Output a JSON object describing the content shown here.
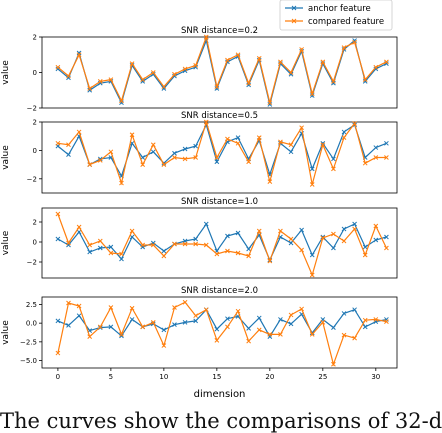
{
  "legend": {
    "items": [
      {
        "label": "anchor feature",
        "color": "#1f77b4",
        "marker": "x"
      },
      {
        "label": "compared feature",
        "color": "#ff7f0e",
        "marker": "x"
      }
    ]
  },
  "caption": "The curves show the comparisons of 32-d",
  "chart_data": [
    {
      "type": "line",
      "title": "SNR distance=0.2",
      "xlabel": "",
      "ylabel": "value",
      "xlim": [
        -1.5,
        32
      ],
      "ylim": [
        -2,
        2
      ],
      "yticks": [
        -2,
        0,
        2
      ],
      "ytick_labels": [
        "−2",
        "0",
        "2"
      ],
      "xticks": [],
      "xtick_labels": [],
      "x": [
        0,
        1,
        2,
        3,
        4,
        5,
        6,
        7,
        8,
        9,
        10,
        11,
        12,
        13,
        14,
        15,
        16,
        17,
        18,
        19,
        20,
        21,
        22,
        23,
        24,
        25,
        26,
        27,
        28,
        29,
        30,
        31
      ],
      "series": [
        {
          "name": "anchor feature",
          "values": [
            0.2,
            -0.3,
            1.1,
            -1.0,
            -0.6,
            -0.5,
            -1.7,
            0.4,
            -0.5,
            -0.1,
            -0.9,
            -0.2,
            0.1,
            0.3,
            1.8,
            -0.9,
            0.6,
            0.9,
            -0.7,
            0.7,
            -1.8,
            0.5,
            -0.1,
            1.2,
            -1.3,
            0.5,
            -0.6,
            1.3,
            1.8,
            -0.5,
            0.2,
            0.5
          ]
        },
        {
          "name": "compared feature",
          "values": [
            0.3,
            -0.2,
            1.0,
            -0.9,
            -0.5,
            -0.4,
            -1.6,
            0.5,
            -0.4,
            0.0,
            -0.8,
            -0.1,
            0.2,
            0.4,
            2.0,
            -0.8,
            0.7,
            1.0,
            -0.6,
            0.8,
            -1.7,
            0.6,
            0.0,
            1.3,
            -1.2,
            0.6,
            -0.5,
            1.4,
            1.7,
            -0.4,
            0.3,
            0.6
          ]
        }
      ]
    },
    {
      "type": "line",
      "title": "SNR distance=0.5",
      "xlabel": "",
      "ylabel": "value",
      "xlim": [
        -1.5,
        32
      ],
      "ylim": [
        -3,
        2
      ],
      "yticks": [
        -2,
        0,
        2
      ],
      "ytick_labels": [
        "−2",
        "0",
        "2"
      ],
      "xticks": [],
      "xtick_labels": [],
      "x": [
        0,
        1,
        2,
        3,
        4,
        5,
        6,
        7,
        8,
        9,
        10,
        11,
        12,
        13,
        14,
        15,
        16,
        17,
        18,
        19,
        20,
        21,
        22,
        23,
        24,
        25,
        26,
        27,
        28,
        29,
        30,
        31
      ],
      "series": [
        {
          "name": "anchor feature",
          "values": [
            0.3,
            -0.3,
            1.0,
            -1.0,
            -0.6,
            -0.5,
            -1.8,
            0.5,
            -0.5,
            -0.1,
            -0.9,
            -0.2,
            0.1,
            0.3,
            1.8,
            -0.8,
            0.6,
            0.9,
            -0.6,
            0.7,
            -1.7,
            0.5,
            -0.1,
            1.2,
            -1.3,
            0.5,
            -0.6,
            1.3,
            1.8,
            -0.5,
            0.2,
            0.5
          ]
        },
        {
          "name": "compared feature",
          "values": [
            0.5,
            0.4,
            1.3,
            -1.0,
            -0.7,
            -0.1,
            -2.3,
            1.1,
            -1.0,
            0.4,
            -1.0,
            -0.5,
            -0.6,
            -0.5,
            2.0,
            -0.5,
            0.8,
            0.5,
            -0.8,
            0.9,
            -2.2,
            0.6,
            0.4,
            1.6,
            -2.4,
            0.4,
            -1.3,
            0.9,
            1.9,
            -0.9,
            -0.5,
            -0.5
          ]
        }
      ]
    },
    {
      "type": "line",
      "title": "SNR distance=1.0",
      "xlabel": "",
      "ylabel": "value",
      "xlim": [
        -1.5,
        32
      ],
      "ylim": [
        -3.6,
        3.4
      ],
      "yticks": [
        -2,
        0,
        2
      ],
      "ytick_labels": [
        "−2",
        "0",
        "2"
      ],
      "xticks": [],
      "xtick_labels": [],
      "x": [
        0,
        1,
        2,
        3,
        4,
        5,
        6,
        7,
        8,
        9,
        10,
        11,
        12,
        13,
        14,
        15,
        16,
        17,
        18,
        19,
        20,
        21,
        22,
        23,
        24,
        25,
        26,
        27,
        28,
        29,
        30,
        31
      ],
      "series": [
        {
          "name": "anchor feature",
          "values": [
            0.3,
            -0.3,
            1.0,
            -1.0,
            -0.6,
            -0.5,
            -1.7,
            0.5,
            -0.5,
            -0.1,
            -0.9,
            -0.2,
            0.1,
            0.3,
            1.8,
            -0.9,
            0.6,
            0.9,
            -0.7,
            0.7,
            -1.8,
            0.5,
            -0.1,
            1.2,
            -1.3,
            0.5,
            -0.6,
            1.3,
            1.8,
            -0.5,
            0.2,
            0.5
          ]
        },
        {
          "name": "compared feature",
          "values": [
            2.8,
            -0.1,
            1.5,
            -0.3,
            0.1,
            -1.1,
            -1.2,
            1.1,
            -0.3,
            -0.3,
            -1.4,
            -0.2,
            -0.2,
            -0.2,
            -0.3,
            -1.2,
            -0.9,
            -1.1,
            -1.4,
            1.1,
            -1.9,
            1.1,
            0.3,
            -0.8,
            -3.3,
            0.4,
            0.8,
            0.1,
            1.3,
            -1.3,
            1.6,
            -0.6
          ]
        }
      ]
    },
    {
      "type": "line",
      "title": "SNR distance=2.0",
      "xlabel": "dimension",
      "ylabel": "value",
      "xlim": [
        -1.5,
        32
      ],
      "ylim": [
        -6.0,
        3.5
      ],
      "yticks": [
        -5.0,
        -2.5,
        0.0,
        2.5
      ],
      "ytick_labels": [
        "−5.0",
        "−2.5",
        "0.0",
        "2.5"
      ],
      "xticks": [
        0,
        5,
        10,
        15,
        20,
        25,
        30
      ],
      "xtick_labels": [
        "0",
        "5",
        "10",
        "15",
        "20",
        "25",
        "30"
      ],
      "x": [
        0,
        1,
        2,
        3,
        4,
        5,
        6,
        7,
        8,
        9,
        10,
        11,
        12,
        13,
        14,
        15,
        16,
        17,
        18,
        19,
        20,
        21,
        22,
        23,
        24,
        25,
        26,
        27,
        28,
        29,
        30,
        31
      ],
      "series": [
        {
          "name": "anchor feature",
          "values": [
            0.3,
            -0.3,
            1.0,
            -1.0,
            -0.6,
            -0.5,
            -1.7,
            0.5,
            -0.5,
            -0.1,
            -0.9,
            -0.2,
            0.1,
            0.3,
            1.8,
            -0.8,
            0.6,
            0.9,
            -0.7,
            0.7,
            -1.8,
            0.5,
            -0.1,
            1.2,
            -1.3,
            0.5,
            -0.6,
            1.3,
            1.8,
            -0.5,
            0.2,
            0.5
          ]
        },
        {
          "name": "compared feature",
          "values": [
            -4.0,
            2.7,
            2.3,
            -1.8,
            -0.5,
            2.1,
            -1.5,
            2.0,
            -0.5,
            0.1,
            -3.0,
            2.1,
            2.8,
            1.0,
            1.8,
            -2.3,
            -0.5,
            1.6,
            -2.4,
            -0.9,
            -1.5,
            -1.5,
            1.1,
            1.9,
            -1.5,
            0.1,
            -5.5,
            -1.6,
            -2.0,
            0.4,
            0.5,
            0.2
          ]
        }
      ]
    }
  ]
}
